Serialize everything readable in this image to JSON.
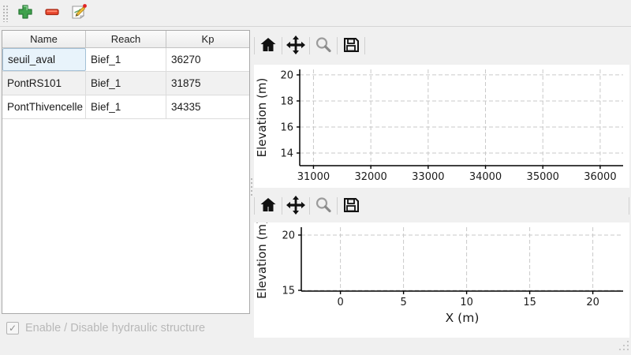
{
  "main_toolbar": {
    "buttons": [
      {
        "id": "add",
        "icon": "plus-icon"
      },
      {
        "id": "remove",
        "icon": "minus-icon"
      },
      {
        "id": "edit",
        "icon": "edit-icon"
      }
    ]
  },
  "structures_table": {
    "columns": [
      "Name",
      "Reach",
      "Kp"
    ],
    "rows": [
      [
        "seuil_aval",
        "Bief_1",
        "36270"
      ],
      [
        "PontRS101",
        "Bief_1",
        "31875"
      ],
      [
        "PontThivencelle",
        "Bief_1",
        "34335"
      ]
    ],
    "selected_cell": {
      "row": 0,
      "col": 0,
      "value": "seuil_aval"
    }
  },
  "enable_checkbox": {
    "label": "Enable / Disable hydraulic structure",
    "checked": true,
    "enabled": false,
    "check_glyph": "✓"
  },
  "plot_toolbars": {
    "icons": [
      "home",
      "pan",
      "zoom",
      "save"
    ],
    "inactive_icon": "zoom"
  },
  "chart_data": [
    {
      "type": "line",
      "title": "",
      "xlabel": "",
      "ylabel": "Elevation (m)",
      "xticks": [
        31000,
        32000,
        33000,
        34000,
        35000,
        36000
      ],
      "yticks": [
        14,
        16,
        18,
        20
      ],
      "xlim": [
        30760,
        36400
      ],
      "ylim": [
        13.03,
        20.42
      ],
      "grid": true,
      "grid_style": "dashed",
      "series": []
    },
    {
      "type": "line",
      "title": "",
      "xlabel": "X (m)",
      "ylabel": "Elevation (m)",
      "xticks": [
        0,
        5,
        10,
        15,
        20
      ],
      "yticks": [
        15,
        20
      ],
      "xlim": [
        -3.1,
        22.4
      ],
      "ylim": [
        14.93,
        20.71
      ],
      "grid": true,
      "grid_style": "dashed",
      "series": []
    }
  ],
  "colors": {
    "add_green": "#3fa14c",
    "remove_red": "#e8472e",
    "selection_bg": "#e8f3fb",
    "selection_border": "#a3c0d6",
    "grid_line": "#c9c9c9",
    "disabled_text": "#b8b8b8",
    "icon_black": "#111111",
    "icon_disabled": "#9c9c9c"
  }
}
